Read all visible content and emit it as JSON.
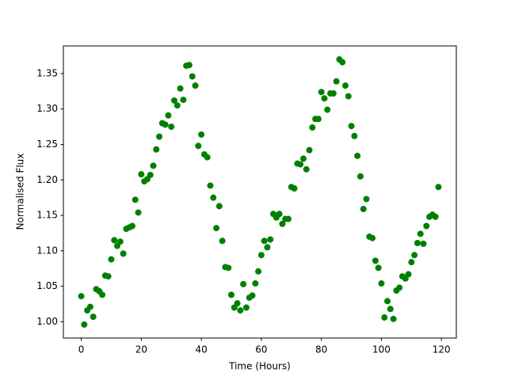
{
  "chart_data": {
    "type": "scatter",
    "x_label": "Time (Hours)",
    "y_label": "Normalised Flux",
    "x": [
      0,
      1,
      2,
      3,
      4,
      5,
      6,
      7,
      8,
      9,
      10,
      11,
      12,
      13,
      14,
      15,
      16,
      17,
      18,
      19,
      20,
      21,
      22,
      23,
      24,
      25,
      26,
      27,
      28,
      29,
      30,
      31,
      32,
      33,
      34,
      35,
      36,
      37,
      38,
      39,
      40,
      41,
      42,
      43,
      44,
      45,
      46,
      47,
      48,
      49,
      50,
      51,
      52,
      53,
      54,
      55,
      56,
      57,
      58,
      59,
      60,
      61,
      62,
      63,
      64,
      65,
      66,
      67,
      68,
      69,
      70,
      71,
      72,
      73,
      74,
      75,
      76,
      77,
      78,
      79,
      80,
      81,
      82,
      83,
      84,
      85,
      86,
      87,
      88,
      89,
      90,
      91,
      92,
      93,
      94,
      95,
      96,
      97,
      98,
      99,
      100,
      101,
      102,
      103,
      104,
      105,
      106,
      107,
      108,
      109,
      110,
      111,
      112,
      113,
      114,
      115,
      116,
      117,
      118,
      119
    ],
    "values": [
      1.036,
      0.996,
      1.016,
      1.021,
      1.007,
      1.046,
      1.043,
      1.038,
      1.065,
      1.064,
      1.088,
      1.115,
      1.107,
      1.113,
      1.096,
      1.131,
      1.133,
      1.135,
      1.172,
      1.154,
      1.208,
      1.198,
      1.201,
      1.207,
      1.22,
      1.243,
      1.261,
      1.28,
      1.278,
      1.291,
      1.275,
      1.312,
      1.305,
      1.329,
      1.313,
      1.361,
      1.362,
      1.346,
      1.333,
      1.248,
      1.264,
      1.236,
      1.232,
      1.192,
      1.175,
      1.132,
      1.163,
      1.114,
      1.077,
      1.076,
      1.038,
      1.02,
      1.026,
      1.016,
      1.053,
      1.02,
      1.034,
      1.037,
      1.054,
      1.071,
      1.094,
      1.114,
      1.105,
      1.116,
      1.152,
      1.147,
      1.152,
      1.138,
      1.145,
      1.145,
      1.19,
      1.188,
      1.223,
      1.222,
      1.23,
      1.215,
      1.242,
      1.274,
      1.286,
      1.286,
      1.324,
      1.315,
      1.299,
      1.322,
      1.322,
      1.339,
      1.37,
      1.366,
      1.333,
      1.318,
      1.276,
      1.262,
      1.234,
      1.205,
      1.159,
      1.173,
      1.12,
      1.118,
      1.086,
      1.076,
      1.054,
      1.006,
      1.029,
      1.018,
      1.004,
      1.044,
      1.048,
      1.064,
      1.061,
      1.067,
      1.084,
      1.094,
      1.111,
      1.124,
      1.11,
      1.135,
      1.148,
      1.151,
      1.148,
      1.19
    ],
    "color": "#008000",
    "xlim": [
      -5.95,
      124.95
    ],
    "xticks": [
      0,
      20,
      40,
      60,
      80,
      100,
      120
    ],
    "ylim": [
      0.977,
      1.389
    ],
    "yticks": [
      {
        "value": 1.0,
        "label": "1.00"
      },
      {
        "value": 1.05,
        "label": "1.05"
      },
      {
        "value": 1.1,
        "label": "1.10"
      },
      {
        "value": 1.15,
        "label": "1.15"
      },
      {
        "value": 1.2,
        "label": "1.20"
      },
      {
        "value": 1.25,
        "label": "1.25"
      },
      {
        "value": 1.3,
        "label": "1.30"
      },
      {
        "value": 1.35,
        "label": "1.35"
      }
    ],
    "grid": false
  }
}
